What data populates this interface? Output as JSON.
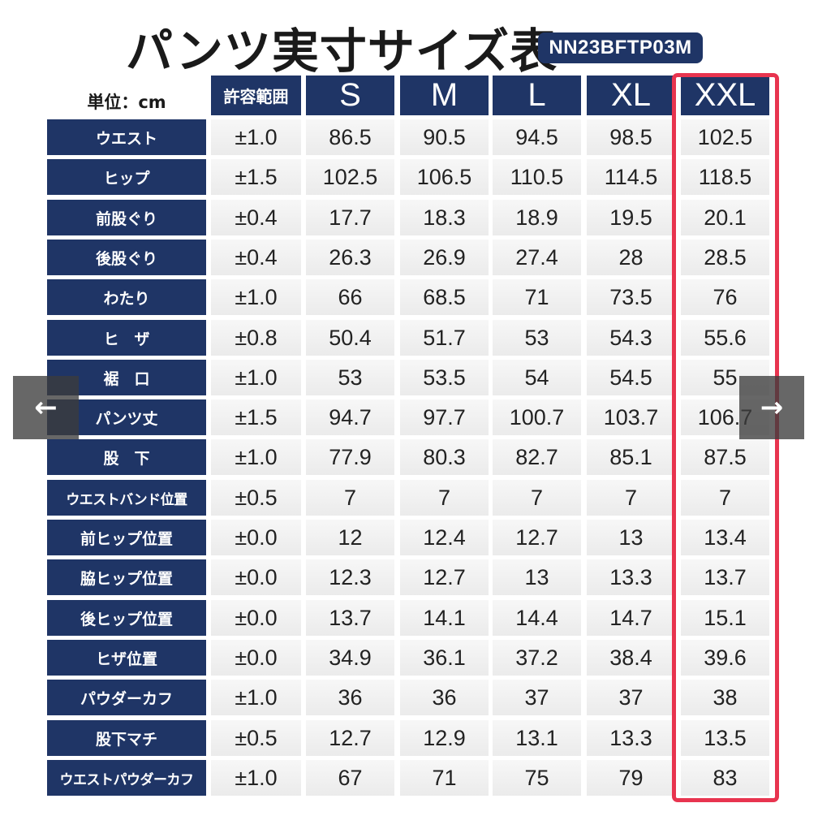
{
  "title": "パンツ実寸サイズ表",
  "product_code": "NN23BFTP03M",
  "unit_label": "単位：cm",
  "headers": {
    "tolerance": "許容範囲",
    "sizes": [
      "S",
      "M",
      "L",
      "XL",
      "XXL"
    ]
  },
  "rows": [
    {
      "label": "ウエスト",
      "tolerance": "±1.0",
      "values": [
        "86.5",
        "90.5",
        "94.5",
        "98.5",
        "102.5"
      ]
    },
    {
      "label": "ヒップ",
      "tolerance": "±1.5",
      "values": [
        "102.5",
        "106.5",
        "110.5",
        "114.5",
        "118.5"
      ]
    },
    {
      "label": "前股ぐり",
      "tolerance": "±0.4",
      "values": [
        "17.7",
        "18.3",
        "18.9",
        "19.5",
        "20.1"
      ]
    },
    {
      "label": "後股ぐり",
      "tolerance": "±0.4",
      "values": [
        "26.3",
        "26.9",
        "27.4",
        "28",
        "28.5"
      ]
    },
    {
      "label": "わたり",
      "tolerance": "±1.0",
      "values": [
        "66",
        "68.5",
        "71",
        "73.5",
        "76"
      ]
    },
    {
      "label": "ヒ　ザ",
      "tolerance": "±0.8",
      "values": [
        "50.4",
        "51.7",
        "53",
        "54.3",
        "55.6"
      ]
    },
    {
      "label": "裾　口",
      "tolerance": "±1.0",
      "values": [
        "53",
        "53.5",
        "54",
        "54.5",
        "55"
      ]
    },
    {
      "label": "パンツ丈",
      "tolerance": "±1.5",
      "values": [
        "94.7",
        "97.7",
        "100.7",
        "103.7",
        "106.7"
      ]
    },
    {
      "label": "股　下",
      "tolerance": "±1.0",
      "values": [
        "77.9",
        "80.3",
        "82.7",
        "85.1",
        "87.5"
      ]
    },
    {
      "label": "ウエストバンド位置",
      "tolerance": "±0.5",
      "values": [
        "7",
        "7",
        "7",
        "7",
        "7"
      ]
    },
    {
      "label": "前ヒップ位置",
      "tolerance": "±0.0",
      "values": [
        "12",
        "12.4",
        "12.7",
        "13",
        "13.4"
      ]
    },
    {
      "label": "脇ヒップ位置",
      "tolerance": "±0.0",
      "values": [
        "12.3",
        "12.7",
        "13",
        "13.3",
        "13.7"
      ]
    },
    {
      "label": "後ヒップ位置",
      "tolerance": "±0.0",
      "values": [
        "13.7",
        "14.1",
        "14.4",
        "14.7",
        "15.1"
      ]
    },
    {
      "label": "ヒザ位置",
      "tolerance": "±0.0",
      "values": [
        "34.9",
        "36.1",
        "37.2",
        "38.4",
        "39.6"
      ]
    },
    {
      "label": "パウダーカフ",
      "tolerance": "±1.0",
      "values": [
        "36",
        "36",
        "37",
        "37",
        "38"
      ]
    },
    {
      "label": "股下マチ",
      "tolerance": "±0.5",
      "values": [
        "12.7",
        "12.9",
        "13.1",
        "13.3",
        "13.5"
      ]
    },
    {
      "label": "ウエストパウダーカフ",
      "tolerance": "±1.0",
      "values": [
        "67",
        "71",
        "75",
        "79",
        "83"
      ]
    }
  ],
  "highlighted_size": "XXL",
  "nav": {
    "prev_icon": "arrow-left-icon",
    "next_icon": "arrow-right-icon",
    "prev_glyph": "←",
    "next_glyph": "→"
  },
  "colors": {
    "header_bg": "#1f3566",
    "highlight": "#e8344f",
    "cell_bg": "#eeeeee"
  }
}
